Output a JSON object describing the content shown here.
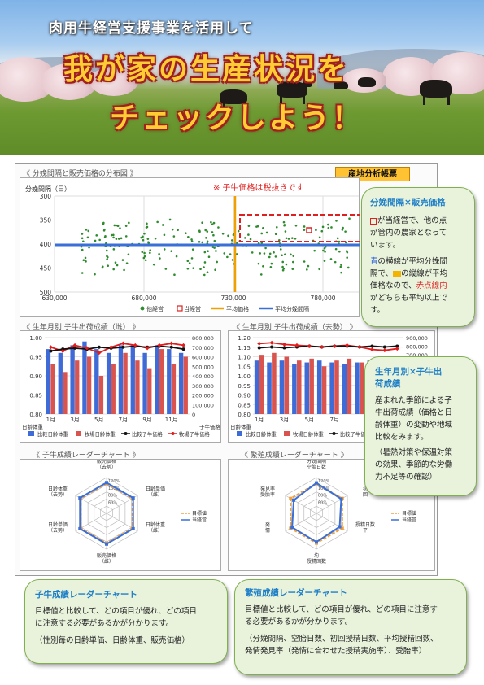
{
  "header": {
    "subtitle": "肉用牛経営支援事業を活用して",
    "title_line1": "我が家の生産状況を",
    "title_line2": "チェックしよう！"
  },
  "badge": "産地分析帳票",
  "tax_note": "※ 子牛価格は税抜きです",
  "scatter": {
    "section_title": "《 分娩間隔と販売価格の分布図 》",
    "ylabel": "分娩間隔（日）",
    "yticks": [
      "300",
      "350",
      "400",
      "450",
      "500"
    ],
    "xticks": [
      "630,000",
      "680,000",
      "730,000",
      "780,000"
    ],
    "legend": [
      "他経営",
      "当経営",
      "平均価格",
      "平均分娩間隔"
    ]
  },
  "chart_data": [
    {
      "type": "scatter",
      "title": "分娩間隔と販売価格の分布図",
      "ylabel": "分娩間隔（日）",
      "xlim": [
        630000,
        800000
      ],
      "ylim": [
        300,
        500
      ],
      "y_inverted": true,
      "avg_price": 730000,
      "avg_interval": 400,
      "self_point": {
        "x": 773000,
        "y": 370
      },
      "series": [
        {
          "name": "他経営",
          "points": "approx 250 scattered points, x 630000-800000, y 340-470"
        }
      ],
      "colors": {
        "other": "#2e8b2e",
        "self": "#e02020",
        "avg_price": "#f0a000",
        "avg_interval": "#3a6fd8"
      }
    },
    {
      "type": "bar",
      "title": "生年月別 子牛出荷成績（雌）",
      "categories": [
        "1月",
        "2月",
        "3月",
        "4月",
        "5月",
        "6月",
        "7月",
        "8月",
        "9月",
        "10月",
        "11月",
        "12月"
      ],
      "xticks": [
        "1月",
        "3月",
        "5月",
        "7月",
        "9月",
        "11月"
      ],
      "series": [
        {
          "name": "比較日齢体重",
          "values": [
            0.97,
            0.96,
            0.98,
            0.99,
            0.97,
            0.96,
            0.98,
            0.98,
            0.96,
            0.98,
            0.97,
            0.96
          ]
        },
        {
          "name": "牧場日齢体重",
          "values": [
            0.93,
            0.91,
            0.94,
            0.95,
            0.9,
            0.93,
            0.96,
            0.94,
            0.92,
            0.97,
            0.93,
            0.95
          ]
        },
        {
          "name": "比較子牛価格",
          "values": [
            660000,
            680000,
            690000,
            680000,
            700000,
            690000,
            700000,
            710000,
            700000,
            710000,
            700000,
            680000
          ]
        },
        {
          "name": "牧場子牛価格",
          "values": [
            700000,
            660000,
            720000,
            690000,
            640000,
            700000,
            740000,
            720000,
            690000,
            720000,
            740000,
            720000
          ]
        }
      ],
      "y_left": [
        0.8,
        1.0
      ],
      "y_right": [
        0,
        800000
      ],
      "yticks_left": [
        "1.00",
        "0.95",
        "0.90",
        "0.85",
        "0.80"
      ],
      "yticks_right": [
        "800,000",
        "700,000",
        "600,000",
        "500,000",
        "400,000",
        "300,000",
        "200,000",
        "100,000",
        "0"
      ],
      "xlabel_left": "日齢体重",
      "xlabel_right": "子牛価格"
    },
    {
      "type": "bar",
      "title": "生年月別 子牛出荷成績（去勢）",
      "categories": [
        "1月",
        "2月",
        "3月",
        "4月",
        "5月",
        "6月",
        "7月",
        "8月",
        "9月",
        "10月",
        "11月",
        "12月"
      ],
      "xticks": [
        "1月",
        "3月",
        "5月",
        "7月"
      ],
      "series": [
        {
          "name": "比較日齢体重",
          "values": [
            1.08,
            1.07,
            1.08,
            1.06,
            1.07,
            1.08,
            1.07,
            1.06,
            1.07,
            1.08,
            1.06,
            1.07
          ]
        },
        {
          "name": "牧場日齢体重",
          "values": [
            1.11,
            1.12,
            1.1,
            1.08,
            1.09,
            1.05,
            1.08,
            1.09,
            1.07,
            1.06,
            1.04,
            1.05
          ]
        },
        {
          "name": "比較子牛価格",
          "values": [
            780000,
            790000,
            780000,
            790000,
            800000,
            790000,
            800000,
            800000,
            790000,
            800000,
            790000,
            800000
          ]
        },
        {
          "name": "牧場子牛価格",
          "values": [
            830000,
            840000,
            820000,
            810000,
            800000,
            790000,
            800000,
            810000,
            790000,
            760000,
            750000,
            770000
          ]
        }
      ],
      "y_left": [
        0.8,
        1.2
      ],
      "y_right": [
        0,
        900000
      ],
      "yticks_left": [
        "1.20",
        "1.15",
        "1.10",
        "1.05",
        "1.00",
        "0.95",
        "0.90",
        "0.85",
        "0.80"
      ],
      "yticks_right": [
        "900,000",
        "800,000",
        "700,000",
        "600,000",
        "500,000",
        "400,000",
        "300,000",
        "200,000",
        "100,000",
        "0"
      ],
      "xlabel_left": "日齢体重"
    },
    {
      "type": "radar",
      "title": "子牛成績レーダーチャート",
      "axes": [
        "販売価格（去勢）",
        "日齢単価（雌）",
        "日齢体重（雌）",
        "販売価格（雌）",
        "日齢単価（去勢）",
        "日齢体重（去勢）"
      ],
      "series": [
        {
          "name": "目標値",
          "values": [
            100,
            100,
            100,
            100,
            100,
            100
          ]
        },
        {
          "name": "当経営",
          "values": [
            103,
            103,
            103,
            103,
            103,
            103
          ]
        }
      ],
      "rings": [
        "120%",
        "100%",
        "80%",
        "60%"
      ]
    },
    {
      "type": "radar",
      "title": "繁殖成績レーダーチャート",
      "axes": [
        "分娩間隔",
        "空胎日数",
        "初回授精日数",
        "平均授精回数",
        "発情発見率",
        "受胎率"
      ],
      "series": [
        {
          "name": "目標値",
          "values": [
            100,
            100,
            100,
            100,
            100,
            100
          ]
        },
        {
          "name": "当経営",
          "values": [
            102,
            96,
            90,
            96,
            94,
            88
          ]
        }
      ],
      "rings": [
        "120%",
        "100%",
        "80%",
        "60%"
      ]
    }
  ],
  "bar_fem": {
    "section_title": "《 生年月別 子牛出荷成績（雌） 》"
  },
  "bar_cas": {
    "section_title": "《 生年月別 子牛出荷成績（去勢） 》"
  },
  "bar_legend": [
    "比較日齢体重",
    "牧場日齢体重",
    "比較子牛価格",
    "牧場子牛価格"
  ],
  "radar1": {
    "section_title": "《 子牛成績レーダーチャート 》",
    "labels": [
      "販売価格",
      "（去勢）",
      "日齢単価",
      "（雌）",
      "日齢体重",
      "（雌）",
      "販売価格",
      "（雌）",
      "日齢単価",
      "（去勢）",
      "日齢体重",
      "（去勢）"
    ],
    "legend": [
      "目標値",
      "当経営"
    ],
    "rings": [
      "120%",
      "100%",
      "80%",
      "60%"
    ]
  },
  "radar2": {
    "section_title": "《 繁殖成績レーダーチャート 》",
    "labels": [
      "分娩間隔",
      "空胎日数",
      "初",
      "回",
      "授精日数",
      "平",
      "均",
      "授精回数",
      "発",
      "情",
      "発見率",
      "受胎率"
    ],
    "legend": [
      "目標値",
      "当経営"
    ]
  },
  "callout_scatter": {
    "heading": "分娩間隔×販売価格",
    "l1": "が当経営で、他の点",
    "l2": "が管内の農家となって",
    "l3": "います。",
    "l4a": "青",
    "l4b": "の横線が平均分娩間",
    "l5a": "隔で、",
    "l5b": "の縦線が平均",
    "l6a": "価格なので、",
    "l6b": "赤点線内",
    "l7": "がどちらも平均以上で",
    "l8": "す。"
  },
  "callout_bar": {
    "heading1": "生年月別×子牛出",
    "heading2": "荷成績",
    "l1": "産まれた季節による子",
    "l2": "牛出荷成績（価格と日",
    "l3": "齢体重）の変動や地域",
    "l4": "比較をみます。",
    "l5": "（暑熱対策や保温対策",
    "l6": "の効果、季節的な労働",
    "l7": "力不足等の確認）"
  },
  "callout_r1": {
    "heading": "子牛成績レーダーチャート",
    "l1": "目標値と比較して、どの項目が優れ、どの項目",
    "l2": "に注意する必要があるかが分かります。",
    "l3": "（性別毎の日齢単価、日齢体重、販売価格）"
  },
  "callout_r2": {
    "heading": "繁殖成績レーダーチャート",
    "l1": "目標値と比較して、どの項目が優れ、どの項目に注意す",
    "l2": "る必要があるかが分かります。",
    "l3": "（分娩間隔、空胎日数、初回授精日数、平均授精回数、",
    "l4": "発情発見率（発情に合わせた授精実施率）、受胎率）"
  }
}
